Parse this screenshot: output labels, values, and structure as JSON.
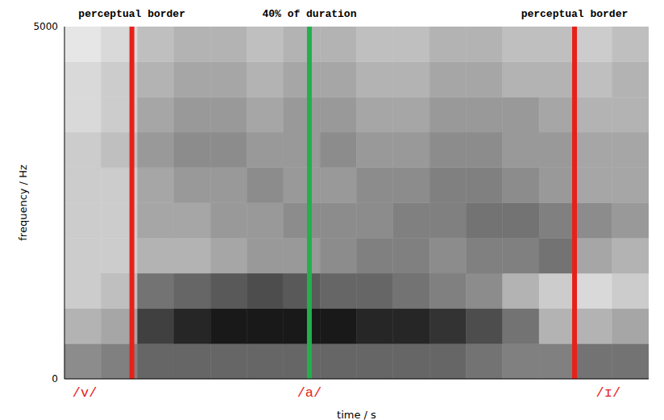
{
  "chart_data": {
    "type": "heatmap",
    "x_label": "time / s",
    "y_label": "frequency / Hz",
    "xlim": [
      0,
      0.26
    ],
    "ylim": [
      0,
      5000
    ],
    "yticks": [
      0,
      5000
    ],
    "tick_labels": "y",
    "cells": {
      "x": [
        0,
        0.01625,
        0.0325,
        0.04875,
        0.065,
        0.08125,
        0.0975,
        0.11375,
        0.13,
        0.14625,
        0.1625,
        0.17875,
        0.195,
        0.21125,
        0.2275,
        0.24375,
        0.26
      ],
      "y": [
        0,
        500,
        1000,
        1500,
        2000,
        2500,
        3000,
        3500,
        4000,
        4500,
        5000
      ],
      "values": [
        [
          0.45,
          0.5,
          0.6,
          0.6,
          0.6,
          0.6,
          0.6,
          0.6,
          0.6,
          0.6,
          0.6,
          0.55,
          0.5,
          0.5,
          0.55,
          0.55
        ],
        [
          0.3,
          0.35,
          0.75,
          0.85,
          0.9,
          0.9,
          0.9,
          0.9,
          0.85,
          0.85,
          0.8,
          0.7,
          0.55,
          0.3,
          0.3,
          0.35
        ],
        [
          0.2,
          0.25,
          0.55,
          0.6,
          0.65,
          0.7,
          0.65,
          0.6,
          0.6,
          0.55,
          0.5,
          0.45,
          0.3,
          0.2,
          0.15,
          0.2
        ],
        [
          0.2,
          0.2,
          0.3,
          0.3,
          0.35,
          0.4,
          0.4,
          0.45,
          0.5,
          0.5,
          0.45,
          0.5,
          0.5,
          0.55,
          0.35,
          0.3
        ],
        [
          0.2,
          0.2,
          0.35,
          0.35,
          0.4,
          0.4,
          0.45,
          0.45,
          0.45,
          0.5,
          0.5,
          0.55,
          0.55,
          0.5,
          0.45,
          0.4
        ],
        [
          0.2,
          0.2,
          0.35,
          0.4,
          0.4,
          0.45,
          0.4,
          0.4,
          0.45,
          0.45,
          0.5,
          0.5,
          0.45,
          0.4,
          0.35,
          0.35
        ],
        [
          0.2,
          0.25,
          0.4,
          0.45,
          0.45,
          0.4,
          0.4,
          0.45,
          0.4,
          0.4,
          0.45,
          0.45,
          0.4,
          0.4,
          0.35,
          0.35
        ],
        [
          0.15,
          0.2,
          0.35,
          0.4,
          0.4,
          0.35,
          0.4,
          0.4,
          0.35,
          0.35,
          0.4,
          0.4,
          0.4,
          0.35,
          0.3,
          0.3
        ],
        [
          0.15,
          0.2,
          0.3,
          0.35,
          0.35,
          0.3,
          0.35,
          0.35,
          0.3,
          0.3,
          0.35,
          0.35,
          0.3,
          0.3,
          0.25,
          0.3
        ],
        [
          0.1,
          0.15,
          0.25,
          0.3,
          0.3,
          0.25,
          0.3,
          0.3,
          0.25,
          0.25,
          0.3,
          0.3,
          0.25,
          0.25,
          0.2,
          0.25
        ]
      ]
    },
    "markers": [
      {
        "x": 0.03,
        "label": "perceptual border",
        "color": "#e8201a"
      },
      {
        "x": 0.109,
        "label": "40% of duration",
        "color": "#22b04b"
      },
      {
        "x": 0.227,
        "label": "perceptual border",
        "color": "#e8201a"
      }
    ],
    "segments": [
      {
        "x": 0.009,
        "label": "/v/",
        "color": "#e8201a"
      },
      {
        "x": 0.109,
        "label": "/a/",
        "color": "#e8201a"
      },
      {
        "x": 0.242,
        "label": "/ɪ/",
        "color": "#e8201a"
      }
    ]
  }
}
